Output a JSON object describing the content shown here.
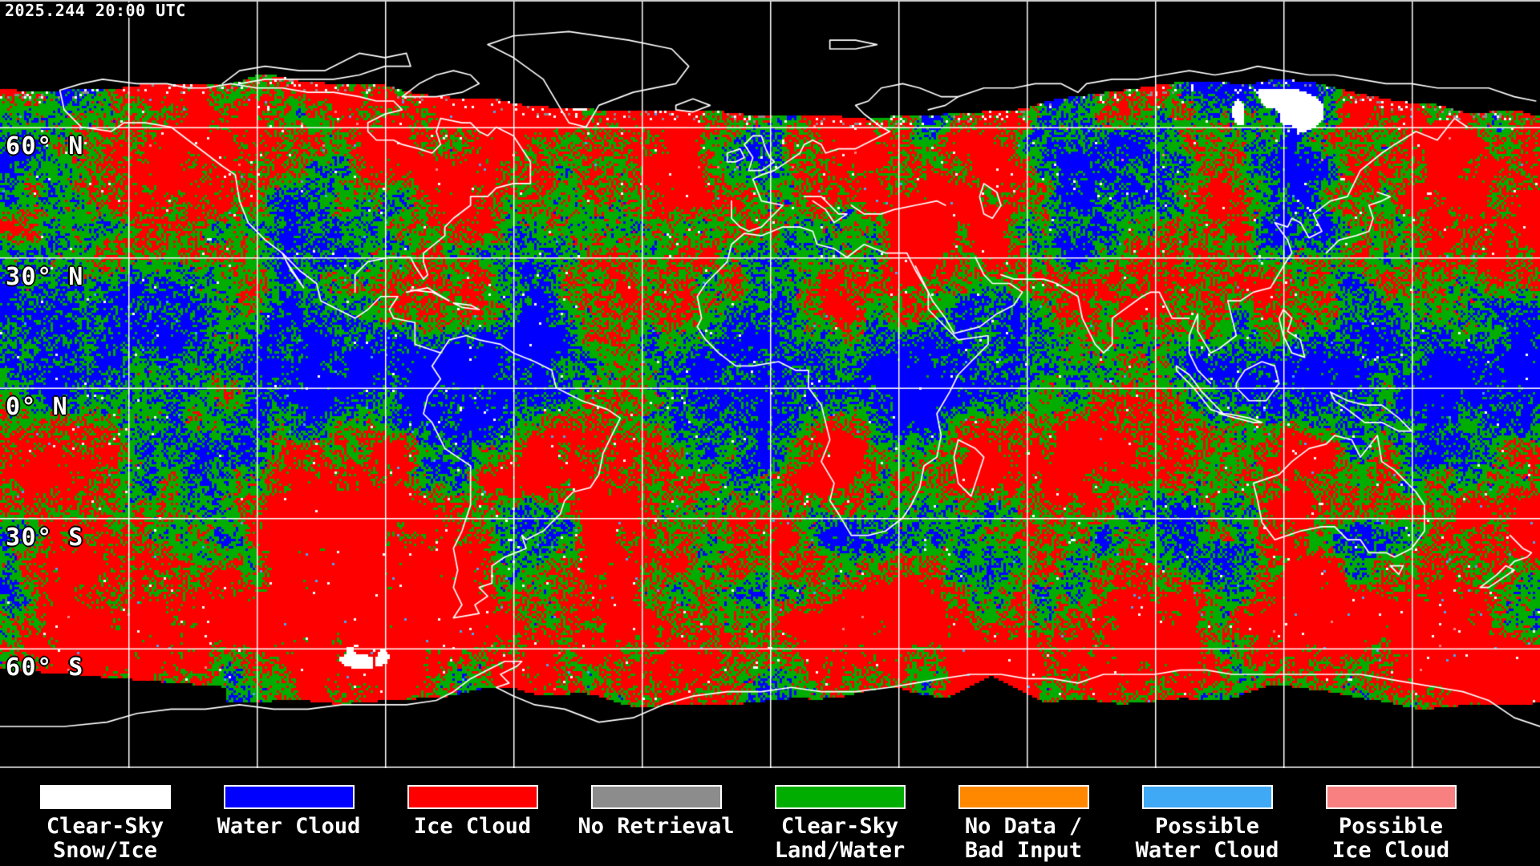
{
  "header": {
    "timestamp": "2025.244 20:00 UTC"
  },
  "map": {
    "lat_labels": [
      "60° N",
      "30° N",
      "0° N",
      "30° S",
      "60° S"
    ],
    "grid": {
      "lat_step_deg": 30,
      "lon_step_deg": 30,
      "line_color": "#FFFFFF"
    },
    "background_color": "#000000",
    "coastline_color": "#FFFFFF",
    "class_colors": {
      "clear_snow": "#FFFFFF",
      "water_cloud": "#0000FF",
      "ice_cloud": "#FF0000",
      "no_retrieval": "#8C8C8C",
      "clear_land": "#00AD00",
      "no_data": "#FF8800",
      "possible_water": "#3FA9F5",
      "possible_ice": "#F88080",
      "missing": "#000000"
    }
  },
  "legend": {
    "items": [
      {
        "name": "clear-sky-snow-ice",
        "color": "#FFFFFF",
        "lines": [
          "Clear-Sky",
          "Snow/Ice"
        ]
      },
      {
        "name": "water-cloud",
        "color": "#0000FF",
        "lines": [
          "Water Cloud"
        ]
      },
      {
        "name": "ice-cloud",
        "color": "#FF0000",
        "lines": [
          "Ice Cloud"
        ]
      },
      {
        "name": "no-retrieval",
        "color": "#8C8C8C",
        "lines": [
          "No Retrieval"
        ]
      },
      {
        "name": "clear-sky-land-water",
        "color": "#00AD00",
        "lines": [
          "Clear-Sky",
          "Land/Water"
        ]
      },
      {
        "name": "no-data-bad-input",
        "color": "#FF8800",
        "lines": [
          "No Data /",
          "Bad Input"
        ]
      },
      {
        "name": "possible-water-cloud",
        "color": "#3FA9F5",
        "lines": [
          "Possible",
          "Water Cloud"
        ]
      },
      {
        "name": "possible-ice-cloud",
        "color": "#F88080",
        "lines": [
          "Possible",
          "Ice Cloud"
        ]
      }
    ]
  }
}
